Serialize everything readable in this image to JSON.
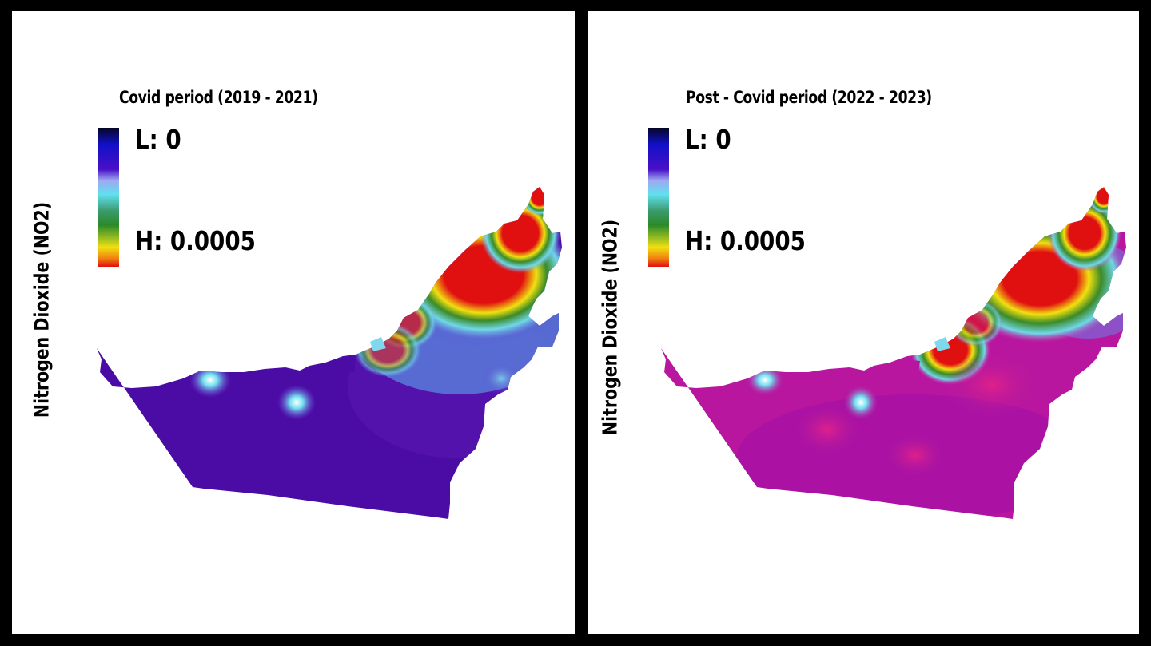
{
  "panels": [
    {
      "title": "Covid period (2019 - 2021)",
      "ylabel": "Nitrogen Dioxide (NO2)",
      "legend_low": "L: 0",
      "legend_high": "H: 0.0005"
    },
    {
      "title": "Post - Covid period (2022 - 2023)",
      "ylabel": "Nitrogen Dioxide (NO2)",
      "legend_low": "L: 0",
      "legend_high": "H: 0.0005"
    }
  ],
  "colors": {
    "frame": "#000000",
    "panel_bg": "#ffffff",
    "covid_base": "#4b0ca6",
    "post_base": "#c0169e",
    "hotspot": "#e01010"
  }
}
